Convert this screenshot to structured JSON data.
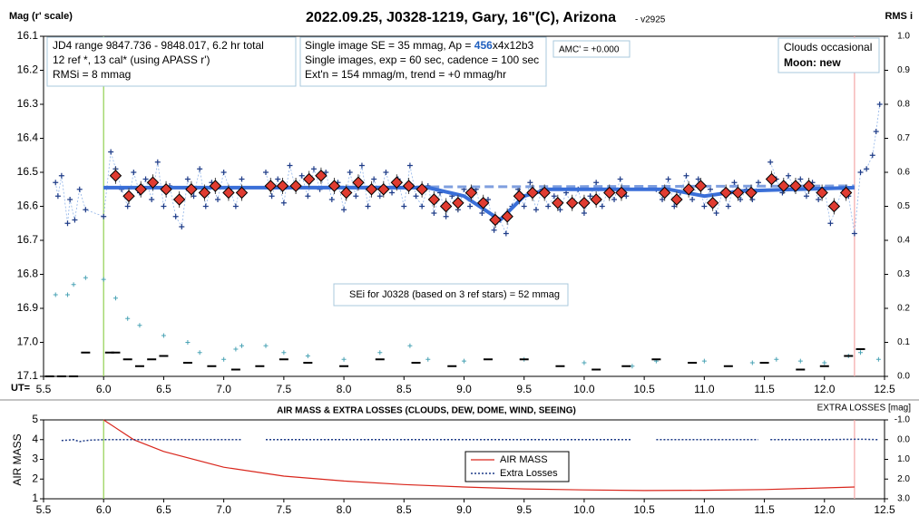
{
  "chart_data": [
    {
      "type": "scatter",
      "title": "2022.09.25, J0328-1219, Gary, 16\"(C), Arizona",
      "subtitle": "- v2925",
      "ylabel": "Mag (r' scale)",
      "y2label": "RMS i",
      "xlabel": "UT=",
      "info_left": [
        "JD4 range 9847.736 - 9848.017, 6.2 hr total",
        "12 ref *, 13 cal*  (using APASS r')",
        "RMSi = 8 mmag"
      ],
      "info_mid": {
        "line1": [
          "Single image SE = 35 mmag, Ap = ",
          "456",
          "x4x12b3"
        ],
        "line2": "Single images, exp = 60 sec, cadence = 100 sec",
        "line3": "Ext'n = 154 mmag/m, trend = +0 mmag/hr"
      },
      "amc": "AMC' = +0.000",
      "conditions": [
        "Clouds occasional",
        "Moon: new"
      ],
      "sei_note": "SEi for J0328 (based on 3 ref stars) = 52 mmag",
      "xlim": [
        5.5,
        12.5
      ],
      "xticks": [
        {
          "value": 5.5,
          "label": "5.5"
        },
        {
          "value": 6,
          "label": "6.0"
        },
        {
          "value": 6.5,
          "label": "6.5"
        },
        {
          "value": 7,
          "label": "7.0"
        },
        {
          "value": 7.5,
          "label": "7.5"
        },
        {
          "value": 8,
          "label": "8.0"
        },
        {
          "value": 8.5,
          "label": "8.5"
        },
        {
          "value": 9,
          "label": "9.0"
        },
        {
          "value": 9.5,
          "label": "9.5"
        },
        {
          "value": 10,
          "label": "10.0"
        },
        {
          "value": 10.5,
          "label": "10.5"
        },
        {
          "value": 11,
          "label": "11.0"
        },
        {
          "value": 11.5,
          "label": "11.5"
        },
        {
          "value": 12,
          "label": "12.0"
        },
        {
          "value": 12.5,
          "label": "12.5"
        }
      ],
      "ylim": [
        16.1,
        17.1
      ],
      "y_inverted": true,
      "yticks": [
        16.1,
        16.2,
        16.3,
        16.4,
        16.5,
        16.6,
        16.7,
        16.8,
        16.9,
        {
          "value": 17,
          "label": "17.0"
        },
        17.1
      ],
      "y2lim": [
        0,
        1
      ],
      "y2_inverted": false,
      "y2ticks": [
        {
          "value": 1,
          "label": "1.0"
        },
        0.9,
        0.8,
        0.7,
        0.6,
        0.5,
        0.4,
        0.3,
        0.2,
        0.1,
        {
          "value": 0,
          "label": "0.0"
        }
      ],
      "vlines": [
        {
          "x": 6.0,
          "color": "#92d050"
        },
        {
          "x": 12.25,
          "color": "#f4a6a6"
        }
      ],
      "series": [
        {
          "style": "plus",
          "color": "#1f3c88",
          "axis": "y",
          "x": [
            5.6,
            5.62,
            5.65,
            5.7,
            5.72,
            5.76,
            5.8,
            5.85,
            6.0,
            6.06,
            6.1,
            6.15,
            6.2,
            6.25,
            6.3,
            6.35,
            6.4,
            6.45,
            6.5,
            6.55,
            6.6,
            6.65,
            6.7,
            6.75,
            6.8,
            6.85,
            6.9,
            6.95,
            7.0,
            7.05,
            7.1,
            7.15,
            7.25,
            7.35,
            7.4,
            7.45,
            7.5,
            7.55,
            7.6,
            7.65,
            7.7,
            7.75,
            7.8,
            7.85,
            7.9,
            7.95,
            8.0,
            8.05,
            8.1,
            8.15,
            8.2,
            8.25,
            8.3,
            8.35,
            8.4,
            8.45,
            8.5,
            8.55,
            8.6,
            8.65,
            8.7,
            8.75,
            8.8,
            8.85,
            8.9,
            8.95,
            9.0,
            9.05,
            9.1,
            9.15,
            9.2,
            9.25,
            9.3,
            9.35,
            9.4,
            9.45,
            9.5,
            9.55,
            9.6,
            9.65,
            9.7,
            9.75,
            9.8,
            9.85,
            9.9,
            9.95,
            10.0,
            10.05,
            10.1,
            10.15,
            10.2,
            10.25,
            10.3,
            10.35,
            10.5,
            10.6,
            10.65,
            10.7,
            10.75,
            10.8,
            10.85,
            10.9,
            10.95,
            11.0,
            11.05,
            11.1,
            11.15,
            11.2,
            11.25,
            11.3,
            11.35,
            11.4,
            11.45,
            11.5,
            11.55,
            11.6,
            11.65,
            11.7,
            11.75,
            11.8,
            11.85,
            11.9,
            11.95,
            12.0,
            12.05,
            12.1,
            12.15,
            12.2,
            12.25,
            12.3,
            12.35,
            12.4,
            12.43,
            12.46
          ],
          "values": [
            16.53,
            16.57,
            16.51,
            16.65,
            16.58,
            16.64,
            16.55,
            16.61,
            16.63,
            16.44,
            16.49,
            16.55,
            16.6,
            16.5,
            16.56,
            16.52,
            16.58,
            16.47,
            16.6,
            16.54,
            16.63,
            16.66,
            16.52,
            16.57,
            16.49,
            16.6,
            16.53,
            16.58,
            16.5,
            16.55,
            16.6,
            16.52,
            null,
            16.5,
            16.57,
            16.52,
            16.59,
            16.48,
            16.55,
            16.51,
            16.57,
            16.49,
            16.55,
            16.5,
            16.58,
            16.53,
            16.61,
            16.5,
            16.57,
            16.48,
            16.6,
            16.52,
            16.57,
            16.5,
            16.56,
            16.52,
            16.6,
            16.48,
            16.57,
            16.6,
            16.54,
            16.62,
            16.56,
            16.63,
            16.57,
            16.61,
            16.55,
            16.6,
            16.55,
            16.62,
            16.58,
            16.67,
            16.64,
            16.68,
            16.6,
            16.55,
            16.6,
            16.53,
            16.61,
            16.55,
            16.6,
            16.57,
            16.61,
            16.56,
            16.6,
            16.55,
            16.62,
            16.57,
            16.53,
            16.6,
            16.55,
            16.58,
            16.52,
            16.57,
            null,
            16.55,
            16.58,
            16.52,
            16.6,
            16.56,
            16.51,
            16.58,
            16.52,
            16.6,
            16.55,
            16.62,
            16.56,
            16.6,
            16.53,
            16.58,
            16.55,
            16.58,
            16.53,
            null,
            16.47,
            16.52,
            16.56,
            16.51,
            16.55,
            16.52,
            16.57,
            16.53,
            16.58,
            16.55,
            16.65,
            16.6,
            16.55,
            16.57,
            16.68,
            16.5,
            16.49,
            16.45,
            16.38,
            16.3
          ]
        },
        {
          "style": "line",
          "color": "#3a6fd8",
          "axis": "y",
          "x": [
            6.0,
            8.7,
            9.0,
            9.3,
            9.5,
            9.7,
            10.3,
            10.7,
            11.0,
            11.3,
            12.25
          ],
          "values": [
            16.545,
            16.545,
            16.57,
            16.64,
            16.57,
            16.55,
            16.55,
            16.55,
            16.57,
            16.555,
            16.545
          ]
        },
        {
          "style": "dashed",
          "color": "#7f9fdf",
          "axis": "y",
          "x": [
            6.0,
            12.25
          ],
          "values": [
            16.545,
            16.54
          ]
        },
        {
          "style": "diamond",
          "color": "#e03c31",
          "axis": "y",
          "x": [
            6.1,
            6.21,
            6.31,
            6.41,
            6.52,
            6.63,
            6.73,
            6.84,
            6.93,
            7.04,
            7.15,
            7.39,
            7.49,
            7.6,
            7.71,
            7.81,
            7.92,
            8.02,
            8.12,
            8.23,
            8.33,
            8.44,
            8.54,
            8.65,
            8.75,
            8.85,
            8.95,
            9.06,
            9.16,
            9.26,
            9.36,
            9.46,
            9.57,
            9.67,
            9.78,
            9.9,
            10.0,
            10.1,
            10.21,
            10.31,
            10.67,
            10.77,
            10.87,
            10.97,
            11.07,
            11.18,
            11.28,
            11.39,
            11.56,
            11.66,
            11.76,
            11.87,
            11.98,
            12.08,
            12.18
          ],
          "values": [
            16.51,
            16.57,
            16.55,
            16.53,
            16.55,
            16.58,
            16.55,
            16.56,
            16.54,
            16.56,
            16.56,
            16.54,
            16.54,
            16.54,
            16.52,
            16.51,
            16.54,
            16.56,
            16.53,
            16.55,
            16.55,
            16.53,
            16.54,
            16.55,
            16.58,
            16.6,
            16.59,
            16.56,
            16.59,
            16.64,
            16.63,
            16.57,
            16.56,
            16.56,
            16.59,
            16.59,
            16.59,
            16.58,
            16.56,
            16.56,
            16.56,
            16.58,
            16.55,
            16.54,
            16.59,
            16.56,
            16.56,
            16.56,
            16.52,
            16.54,
            16.54,
            16.54,
            16.56,
            16.6,
            16.56
          ]
        },
        {
          "style": "cross",
          "color": "#4aa3b5",
          "axis": "y2",
          "x": [
            5.6,
            5.7,
            5.75,
            5.85,
            5.95,
            6.0,
            6.1,
            6.2,
            6.3,
            6.5,
            6.7,
            6.8,
            7.0,
            7.1,
            7.15,
            7.25,
            7.35,
            7.5,
            7.7,
            8.0,
            8.3,
            8.55,
            8.7,
            9.0,
            9.5,
            10.0,
            10.4,
            10.5,
            10.6,
            11.0,
            11.4,
            11.5,
            11.6,
            11.8,
            12.0,
            12.2,
            12.3,
            12.45
          ],
          "values": [
            0.24,
            0.24,
            0.27,
            0.29,
            null,
            0.285,
            0.23,
            0.17,
            0.15,
            0.12,
            0.1,
            0.07,
            0.05,
            0.08,
            0.09,
            null,
            0.09,
            0.07,
            0.06,
            0.05,
            0.07,
            0.09,
            0.05,
            0.045,
            0.05,
            0.04,
            0.03,
            null,
            0.045,
            0.045,
            0.04,
            null,
            0.05,
            0.045,
            0.04,
            0.06,
            0.07,
            0.05
          ]
        },
        {
          "style": "dash",
          "color": "#000000",
          "axis": "y2",
          "x": [
            5.55,
            5.65,
            5.75,
            5.85,
            6.05,
            6.1,
            6.2,
            6.3,
            6.4,
            6.5,
            6.7,
            6.9,
            7.1,
            7.3,
            7.5,
            7.7,
            8.0,
            8.3,
            8.6,
            8.9,
            9.2,
            9.5,
            9.8,
            10.1,
            10.35,
            10.6,
            10.9,
            11.2,
            11.5,
            11.8,
            12.0,
            12.2,
            12.3
          ],
          "values": [
            0,
            0,
            0,
            0.07,
            0.07,
            0.07,
            0.05,
            0.03,
            0.05,
            0.06,
            0.04,
            0.03,
            0.02,
            0.03,
            0.05,
            0.04,
            0.03,
            0.05,
            0.04,
            0.03,
            0.05,
            0.05,
            0.03,
            0.02,
            0.03,
            0.05,
            0.04,
            0.03,
            0.04,
            0.02,
            0.03,
            0.06,
            0.08
          ]
        }
      ]
    },
    {
      "type": "line",
      "title": "AIR MASS & EXTRA LOSSES (CLOUDS, DEW, DOME, WIND, SEEING)",
      "ylabel": "AIR MASS",
      "y2label": "EXTRA LOSSES [mag]",
      "xlim": [
        5.5,
        12.5
      ],
      "xticks": [
        {
          "value": 5.5,
          "label": "5.5"
        },
        {
          "value": 6,
          "label": "6.0"
        },
        {
          "value": 6.5,
          "label": "6.5"
        },
        {
          "value": 7,
          "label": "7.0"
        },
        {
          "value": 7.5,
          "label": "7.5"
        },
        {
          "value": 8,
          "label": "8.0"
        },
        {
          "value": 8.5,
          "label": "8.5"
        },
        {
          "value": 9,
          "label": "9.0"
        },
        {
          "value": 9.5,
          "label": "9.5"
        },
        {
          "value": 10,
          "label": "10.0"
        },
        {
          "value": 10.5,
          "label": "10.5"
        },
        {
          "value": 11,
          "label": "11.0"
        },
        {
          "value": 11.5,
          "label": "11.5"
        },
        {
          "value": 12,
          "label": "12.0"
        },
        {
          "value": 12.5,
          "label": "12.5"
        }
      ],
      "ylim": [
        1,
        5
      ],
      "y_inverted": false,
      "yticks": [
        1,
        2,
        3,
        4,
        5
      ],
      "y2lim": [
        -1,
        3
      ],
      "y2_inverted": true,
      "y2ticks": [
        {
          "value": -1,
          "label": "-1.0"
        },
        {
          "value": 0,
          "label": "0.0"
        },
        {
          "value": 1,
          "label": "1.0"
        },
        {
          "value": 2,
          "label": "2.0"
        },
        {
          "value": 3,
          "label": "3.0"
        }
      ],
      "vlines": [
        {
          "x": 6.0,
          "color": "#92d050"
        },
        {
          "x": 12.25,
          "color": "#f4a6a6"
        }
      ],
      "series": [
        {
          "name": "AIR MASS",
          "style": "line",
          "color": "#d9261c",
          "axis": "y",
          "x": [
            6.0,
            6.25,
            6.5,
            7.0,
            7.5,
            8.0,
            8.5,
            9.0,
            9.5,
            10.0,
            10.5,
            11.0,
            11.5,
            12.0,
            12.25
          ],
          "values": [
            5.0,
            4.0,
            3.4,
            2.6,
            2.15,
            1.9,
            1.72,
            1.6,
            1.5,
            1.45,
            1.42,
            1.43,
            1.47,
            1.55,
            1.6
          ]
        },
        {
          "name": "Extra Losses",
          "style": "dotted",
          "color": "#1f3c88",
          "axis": "y2",
          "x": [
            5.65,
            5.75,
            5.8,
            5.85,
            5.9,
            6.0,
            6.5,
            7.0,
            7.15,
            7.25,
            7.35,
            8.0,
            9.0,
            10.0,
            10.4,
            10.5,
            10.6,
            11.0,
            11.45,
            11.5,
            11.55,
            12.0,
            12.3,
            12.45
          ],
          "values": [
            0.05,
            0.0,
            0.1,
            0.05,
            0.02,
            0.0,
            0.0,
            0.0,
            0.0,
            null,
            0.0,
            0.0,
            0.0,
            0.0,
            0.0,
            null,
            0.0,
            0.0,
            0.0,
            null,
            0.0,
            0.0,
            -0.02,
            0.0
          ]
        }
      ]
    }
  ]
}
